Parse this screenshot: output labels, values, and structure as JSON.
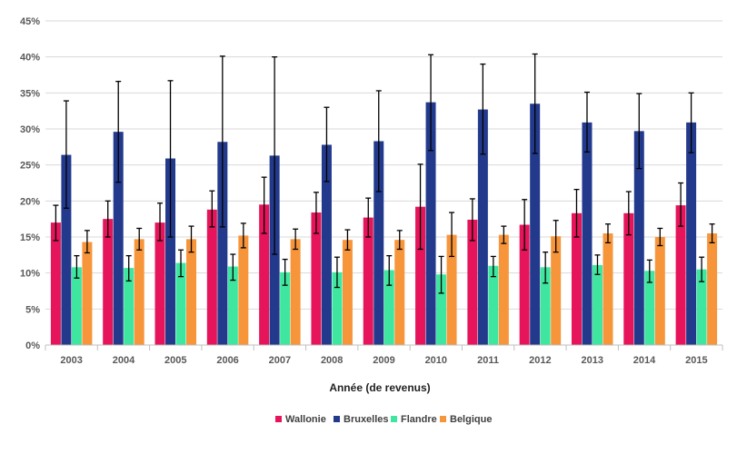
{
  "chart_data": {
    "type": "bar",
    "title": "",
    "xlabel": "Année (de revenus)",
    "ylabel": "",
    "ylim": [
      0,
      45
    ],
    "yticks": [
      0,
      5,
      10,
      15,
      20,
      25,
      30,
      35,
      40,
      45
    ],
    "ytick_labels": [
      "0%",
      "5%",
      "10%",
      "15%",
      "20%",
      "25%",
      "30%",
      "35%",
      "40%",
      "45%"
    ],
    "grid": true,
    "legend_position": "bottom",
    "categories": [
      "2003",
      "2004",
      "2005",
      "2006",
      "2007",
      "2008",
      "2009",
      "2010",
      "2011",
      "2012",
      "2013",
      "2014",
      "2015"
    ],
    "series": [
      {
        "name": "Wallonie",
        "color": "#e6145a",
        "values": [
          17.0,
          17.5,
          17.0,
          18.8,
          19.5,
          18.4,
          17.7,
          19.2,
          17.4,
          16.7,
          18.3,
          18.3,
          19.4
        ],
        "err_low": [
          14.5,
          15.0,
          14.5,
          16.4,
          15.5,
          15.5,
          15.0,
          13.3,
          14.5,
          13.2,
          15.0,
          15.3,
          16.5
        ],
        "err_high": [
          19.4,
          20.0,
          19.7,
          21.4,
          23.3,
          21.2,
          20.4,
          25.1,
          20.3,
          20.2,
          21.6,
          21.3,
          22.5
        ]
      },
      {
        "name": "Bruxelles",
        "color": "#233a8c",
        "values": [
          26.4,
          29.6,
          25.9,
          28.2,
          26.3,
          27.8,
          28.3,
          33.7,
          32.7,
          33.5,
          30.9,
          29.7,
          30.9
        ],
        "err_low": [
          19.0,
          22.6,
          15.0,
          16.4,
          12.6,
          22.7,
          21.3,
          27.0,
          26.5,
          26.6,
          26.8,
          24.5,
          26.7
        ],
        "err_high": [
          33.9,
          36.6,
          36.7,
          40.1,
          40.0,
          33.0,
          35.3,
          40.3,
          39.0,
          40.4,
          35.1,
          34.9,
          35.0
        ]
      },
      {
        "name": "Flandre",
        "color": "#3ee6a0",
        "values": [
          10.8,
          10.7,
          11.4,
          10.9,
          10.1,
          10.1,
          10.4,
          9.8,
          11.0,
          10.8,
          11.1,
          10.3,
          10.5
        ],
        "err_low": [
          9.3,
          8.9,
          9.5,
          9.0,
          8.3,
          8.0,
          8.3,
          7.2,
          9.5,
          8.6,
          9.8,
          8.7,
          8.8
        ],
        "err_high": [
          12.4,
          12.4,
          13.2,
          12.6,
          11.9,
          12.2,
          12.4,
          12.3,
          12.3,
          12.9,
          12.5,
          11.8,
          12.2
        ]
      },
      {
        "name": "Belgique",
        "color": "#f7953b",
        "values": [
          14.3,
          14.7,
          14.7,
          15.2,
          14.7,
          14.6,
          14.6,
          15.3,
          15.3,
          15.1,
          15.5,
          15.0,
          15.5
        ],
        "err_low": [
          12.8,
          13.2,
          12.9,
          13.5,
          13.3,
          13.2,
          13.3,
          12.3,
          14.1,
          12.9,
          14.2,
          13.8,
          14.2
        ],
        "err_high": [
          15.9,
          16.2,
          16.5,
          16.9,
          16.1,
          16.0,
          15.9,
          18.4,
          16.5,
          17.3,
          16.8,
          16.2,
          16.8
        ]
      }
    ]
  }
}
